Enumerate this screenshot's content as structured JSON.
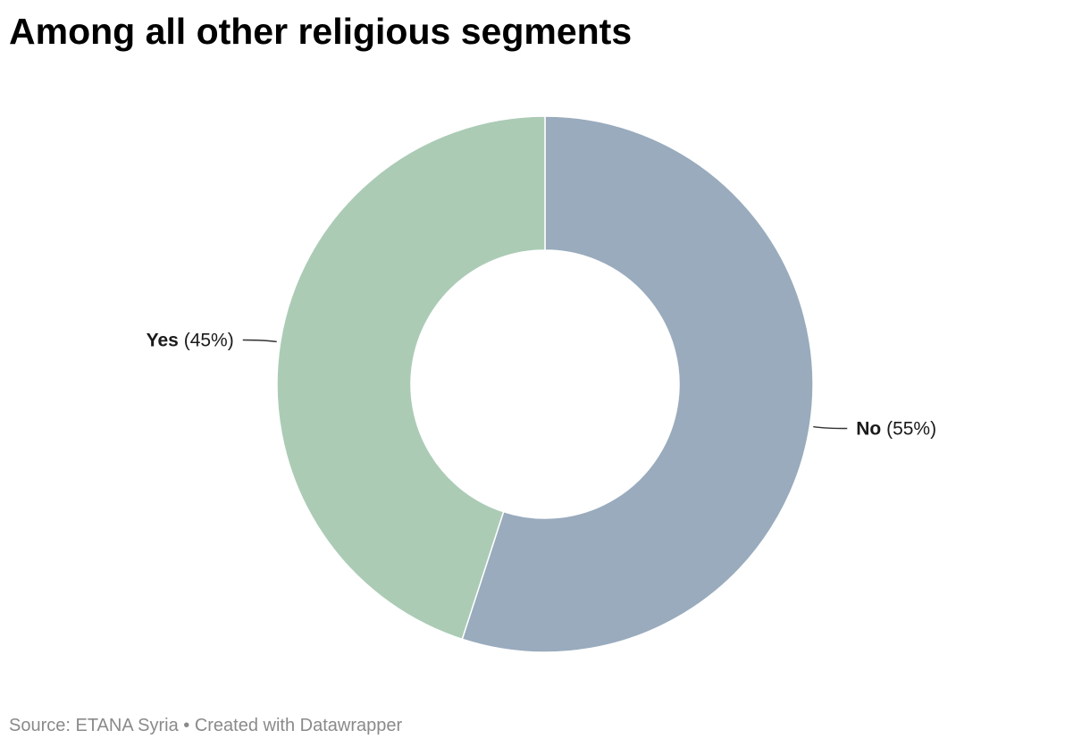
{
  "chart_data": {
    "type": "pie",
    "title": "Among all other religious segments",
    "categories": [
      "No",
      "Yes"
    ],
    "values": [
      55,
      45
    ],
    "value_suffix": "%",
    "colors": [
      "#99abbd",
      "#abcbb5"
    ],
    "donut": true,
    "legend": "none"
  },
  "footer": {
    "source_label": "Source: ",
    "source": "ETANA Syria",
    "separator": " • ",
    "credit": "Created with Datawrapper"
  }
}
